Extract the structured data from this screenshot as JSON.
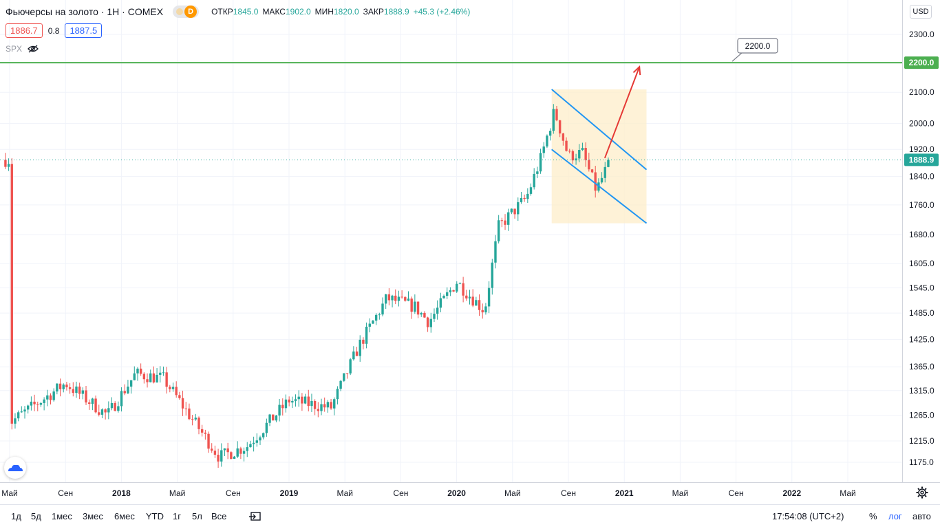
{
  "header": {
    "title": "Фьючерсы на золото · 1Н · COMEX",
    "toggle_label": "D",
    "ohlc": [
      {
        "label": "ОТКР",
        "value": "1845.0"
      },
      {
        "label": "МАКС",
        "value": "1902.0"
      },
      {
        "label": "МИН",
        "value": "1820.0"
      },
      {
        "label": "ЗАКР",
        "value": "1888.9"
      }
    ],
    "change": "+45.3 (+2.46%)",
    "bid": "1886.7",
    "spread": "0.8",
    "ask": "1887.5",
    "compare_symbol": "SPX"
  },
  "currency": "USD",
  "chart_data": {
    "type": "candlestick",
    "y_scale": "log",
    "y_ticks": [
      "2300.0",
      "2200.0",
      "2100.0",
      "2000.0",
      "1920.0",
      "1840.0",
      "1760.0",
      "1680.0",
      "1605.0",
      "1545.0",
      "1485.0",
      "1425.0",
      "1365.0",
      "1315.0",
      "1265.0",
      "1215.0",
      "1175.0"
    ],
    "x_ticks": [
      "Май",
      "Сен",
      "2018",
      "Май",
      "Сен",
      "2019",
      "Май",
      "Сен",
      "2020",
      "Май",
      "Сен",
      "2021",
      "Май",
      "Сен",
      "2022",
      "Май"
    ],
    "last_price": "1888.9",
    "horizontal_level": {
      "label": "2200.0",
      "price": 2200
    },
    "control_points": [
      {
        "date": "2017-05",
        "price": 1250
      },
      {
        "date": "2017-09",
        "price": 1330
      },
      {
        "date": "2017-12",
        "price": 1265
      },
      {
        "date": "2018-02",
        "price": 1350
      },
      {
        "date": "2018-04",
        "price": 1340
      },
      {
        "date": "2018-08",
        "price": 1185
      },
      {
        "date": "2018-10",
        "price": 1205
      },
      {
        "date": "2019-01",
        "price": 1295
      },
      {
        "date": "2019-04",
        "price": 1280
      },
      {
        "date": "2019-06",
        "price": 1410
      },
      {
        "date": "2019-08",
        "price": 1520
      },
      {
        "date": "2019-10",
        "price": 1500
      },
      {
        "date": "2019-11",
        "price": 1465
      },
      {
        "date": "2020-01",
        "price": 1560
      },
      {
        "date": "2020-03",
        "price": 1490
      },
      {
        "date": "2020-04",
        "price": 1700
      },
      {
        "date": "2020-06",
        "price": 1780
      },
      {
        "date": "2020-07",
        "price": 1890
      },
      {
        "date": "2020-08",
        "price": 2040
      },
      {
        "date": "2020-09",
        "price": 1900
      },
      {
        "date": "2020-10",
        "price": 1910
      },
      {
        "date": "2020-11",
        "price": 1800
      },
      {
        "date": "2020-12",
        "price": 1888.9
      }
    ],
    "channel": {
      "upper": [
        {
          "date": "2020-08",
          "price": 2110
        },
        {
          "date": "2021-02",
          "price": 1860
        }
      ],
      "lower": [
        {
          "date": "2020-08",
          "price": 1920
        },
        {
          "date": "2021-02",
          "price": 1710
        }
      ]
    },
    "forecast_arrow": [
      {
        "date": "2020-12",
        "price": 1890
      },
      {
        "date": "2021-01",
        "price": 2200
      }
    ],
    "colors": {
      "up": "#26a69a",
      "down": "#ef5350",
      "level": "#4caf50",
      "channel": "#2196f3",
      "channel_fill": "#fdeec9",
      "arrow": "#e53935",
      "last_price": "#26a69a"
    }
  },
  "range_buttons": [
    "1д",
    "5д",
    "1мес",
    "3мес",
    "6мес",
    "YTD",
    "1г",
    "5л",
    "Все"
  ],
  "clock": "17:54:08 (UTC+2)",
  "scale_options": [
    "%",
    "лог",
    "авто"
  ]
}
